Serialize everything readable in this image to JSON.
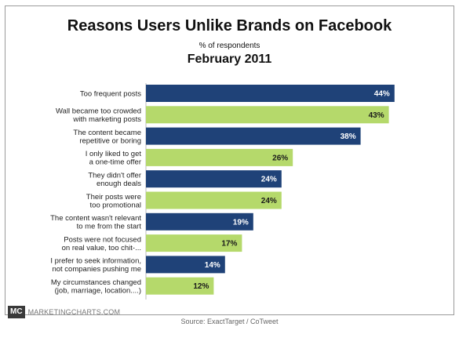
{
  "header": {
    "title": "Reasons Users Unlike Brands on Facebook",
    "subtitle": "% of respondents",
    "date": "February 2011"
  },
  "footer": {
    "logo": "MC",
    "brand": "MARKETINGCHARTS.COM",
    "source": "Source: ExactTarget / CoTweet"
  },
  "colors": {
    "dark_bar": "#1f4278",
    "light_bar": "#b5d96b"
  },
  "chart_data": {
    "type": "bar",
    "orientation": "horizontal",
    "title": "Reasons Users Unlike Brands on Facebook",
    "subtitle": "% of respondents",
    "xlabel": "",
    "ylabel": "",
    "xlim": [
      0,
      50
    ],
    "grid": false,
    "categories": [
      [
        "Too frequent posts"
      ],
      [
        "Wall became too crowded",
        "with marketing posts"
      ],
      [
        "The content became",
        "repetitive or boring"
      ],
      [
        "I only liked to get",
        "a one-time offer"
      ],
      [
        "They didn't offer",
        "enough deals"
      ],
      [
        "Their posts were",
        "too promotional"
      ],
      [
        "The content wasn't relevant",
        "to me from the start"
      ],
      [
        "Posts were not focused",
        "on real value, too chit-..."
      ],
      [
        "I prefer to seek information,",
        "not companies pushing me"
      ],
      [
        "My circumstances changed",
        "(job, marriage, location....)"
      ]
    ],
    "values": [
      44,
      43,
      38,
      26,
      24,
      24,
      19,
      17,
      14,
      12
    ],
    "value_labels": [
      "44%",
      "43%",
      "38%",
      "26%",
      "24%",
      "24%",
      "19%",
      "17%",
      "14%",
      "12%"
    ]
  }
}
